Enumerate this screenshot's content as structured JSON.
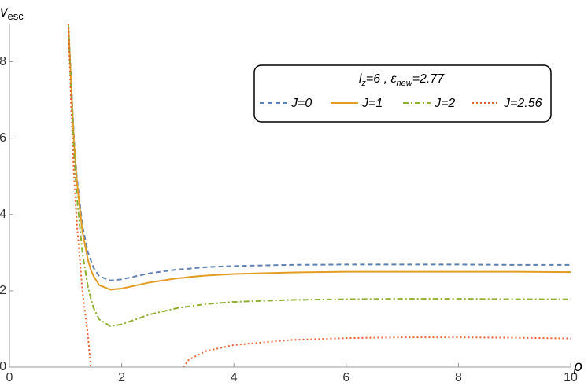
{
  "chart_data": {
    "type": "line",
    "y_label": [
      "v",
      "esc"
    ],
    "x_label": "ρ",
    "legend_title": [
      "l",
      "z",
      "=6 ,  ",
      "ε",
      "new",
      "=2.77"
    ],
    "x": [
      1.05,
      1.1,
      1.15,
      1.2,
      1.3,
      1.4,
      1.45,
      1.5,
      1.6,
      1.8,
      2,
      2.5,
      3,
      3.1,
      3.2,
      3.5,
      4,
      5,
      6,
      7,
      8,
      9,
      10
    ],
    "series": [
      {
        "name": "J=0",
        "color": "#5e81b5",
        "style": "dashed",
        "values": [
          9,
          7.5,
          6.0,
          5.0,
          3.7,
          3.0,
          2.8,
          2.6,
          2.38,
          2.27,
          2.3,
          2.46,
          2.56,
          2.57,
          2.58,
          2.62,
          2.65,
          2.68,
          2.69,
          2.69,
          2.69,
          2.68,
          2.68
        ]
      },
      {
        "name": "J=1",
        "color": "#e19c24",
        "style": "solid",
        "values": [
          9,
          7.4,
          5.9,
          4.9,
          3.55,
          2.8,
          2.55,
          2.38,
          2.15,
          2.03,
          2.06,
          2.22,
          2.33,
          2.34,
          2.36,
          2.4,
          2.44,
          2.48,
          2.5,
          2.5,
          2.5,
          2.5,
          2.49
        ]
      },
      {
        "name": "J=2",
        "color": "#8fb032",
        "style": "dashdot",
        "values": [
          9,
          7.2,
          5.6,
          4.5,
          3.0,
          2.1,
          1.8,
          1.55,
          1.25,
          1.07,
          1.12,
          1.38,
          1.55,
          1.57,
          1.59,
          1.65,
          1.71,
          1.76,
          1.78,
          1.79,
          1.79,
          1.78,
          1.78
        ]
      },
      {
        "name": "J=2.56",
        "color": "#eb6235",
        "style": "dotted",
        "values": [
          9,
          6.8,
          5.0,
          3.8,
          2.0,
          0.8,
          0,
          null,
          null,
          null,
          null,
          null,
          null,
          0,
          0.2,
          0.42,
          0.58,
          0.71,
          0.76,
          0.78,
          0.78,
          0.77,
          0.75
        ]
      }
    ],
    "xlim": [
      0,
      10
    ],
    "ylim": [
      0,
      9
    ],
    "xticks": [
      0,
      2,
      4,
      6,
      8,
      10
    ],
    "yticks": [
      0,
      2,
      4,
      6,
      8
    ],
    "grid": false
  }
}
